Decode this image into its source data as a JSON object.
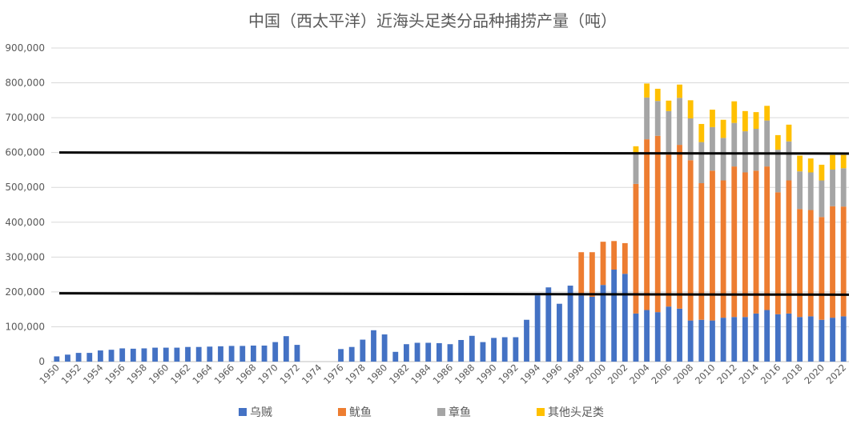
{
  "chart_data": {
    "type": "bar",
    "stacked": true,
    "title": "中国（西太平洋）近海头足类分品种捕捞产量（吨）",
    "xlabel": "",
    "ylabel": "",
    "ylim": [
      0,
      900000
    ],
    "yticks": [
      "0",
      "100,000",
      "200,000",
      "300,000",
      "400,000",
      "500,000",
      "600,000",
      "700,000",
      "800,000",
      "900,000"
    ],
    "grid": true,
    "legend_position": "bottom",
    "categories": [
      "1950",
      "1951",
      "1952",
      "1953",
      "1954",
      "1955",
      "1956",
      "1957",
      "1958",
      "1959",
      "1960",
      "1961",
      "1962",
      "1963",
      "1964",
      "1965",
      "1966",
      "1967",
      "1968",
      "1969",
      "1970",
      "1971",
      "1972",
      "1973",
      "1974",
      "1975",
      "1976",
      "1977",
      "1978",
      "1979",
      "1980",
      "1981",
      "1982",
      "1983",
      "1984",
      "1985",
      "1986",
      "1987",
      "1988",
      "1989",
      "1990",
      "1991",
      "1992",
      "1993",
      "1994",
      "1995",
      "1996",
      "1997",
      "1998",
      "1999",
      "2000",
      "2001",
      "2002",
      "2003",
      "2004",
      "2005",
      "2006",
      "2007",
      "2008",
      "2009",
      "2010",
      "2011",
      "2012",
      "2013",
      "2014",
      "2015",
      "2016",
      "2017",
      "2018",
      "2019",
      "2020",
      "2021",
      "2022"
    ],
    "series": [
      {
        "name": "乌贼",
        "color": "#4472C4",
        "values": [
          15000,
          20000,
          25000,
          25000,
          32000,
          34000,
          38000,
          37000,
          38000,
          40000,
          40000,
          40000,
          42000,
          42000,
          43000,
          44000,
          45000,
          45000,
          46000,
          46000,
          56000,
          73000,
          48000,
          0,
          0,
          0,
          36000,
          42000,
          63000,
          90000,
          78000,
          28000,
          50000,
          54000,
          54000,
          53000,
          50000,
          62000,
          74000,
          56000,
          68000,
          70000,
          70000,
          120000,
          190000,
          213000,
          166000,
          218000,
          190000,
          186000,
          220000,
          264000,
          252000,
          138000,
          148000,
          142000,
          158000,
          152000,
          118000,
          120000,
          118000,
          126000,
          128000,
          128000,
          138000,
          148000,
          136000,
          138000,
          128000,
          130000,
          120000,
          126000,
          130000
        ]
      },
      {
        "name": "鱿鱼",
        "color": "#ED7D31",
        "values": [
          0,
          0,
          0,
          0,
          0,
          0,
          0,
          0,
          0,
          0,
          0,
          0,
          0,
          0,
          0,
          0,
          0,
          0,
          0,
          0,
          0,
          0,
          0,
          0,
          0,
          0,
          0,
          0,
          0,
          0,
          0,
          0,
          0,
          0,
          0,
          0,
          0,
          0,
          0,
          0,
          0,
          0,
          0,
          0,
          0,
          0,
          0,
          0,
          124000,
          128000,
          124000,
          82000,
          88000,
          372000,
          490000,
          506000,
          436000,
          470000,
          460000,
          392000,
          430000,
          394000,
          432000,
          415000,
          410000,
          412000,
          350000,
          382000,
          310000,
          305000,
          295000,
          320000,
          315000
        ]
      },
      {
        "name": "章鱼",
        "color": "#A5A5A5",
        "values": [
          0,
          0,
          0,
          0,
          0,
          0,
          0,
          0,
          0,
          0,
          0,
          0,
          0,
          0,
          0,
          0,
          0,
          0,
          0,
          0,
          0,
          0,
          0,
          0,
          0,
          0,
          0,
          0,
          0,
          0,
          0,
          0,
          0,
          0,
          0,
          0,
          0,
          0,
          0,
          0,
          0,
          0,
          0,
          0,
          0,
          0,
          0,
          0,
          0,
          0,
          0,
          0,
          0,
          90000,
          120000,
          100000,
          125000,
          135000,
          120000,
          118000,
          125000,
          122000,
          125000,
          118000,
          120000,
          132000,
          122000,
          112000,
          108000,
          108000,
          105000,
          105000,
          110000
        ]
      },
      {
        "name": "其他头足类",
        "color": "#FFC000",
        "values": [
          0,
          0,
          0,
          0,
          0,
          0,
          0,
          0,
          0,
          0,
          0,
          0,
          0,
          0,
          0,
          0,
          0,
          0,
          0,
          0,
          0,
          0,
          0,
          0,
          0,
          0,
          0,
          0,
          0,
          0,
          0,
          0,
          0,
          0,
          0,
          0,
          0,
          0,
          0,
          0,
          0,
          0,
          0,
          0,
          0,
          0,
          0,
          0,
          0,
          0,
          0,
          0,
          0,
          18000,
          40000,
          35000,
          30000,
          38000,
          52000,
          52000,
          50000,
          52000,
          62000,
          58000,
          48000,
          42000,
          42000,
          48000,
          45000,
          40000,
          45000,
          42000,
          38000
        ]
      }
    ],
    "reference_lines": [
      {
        "y_start": 600000,
        "y_end": 597000
      },
      {
        "y_start": 196000,
        "y_end": 192000
      }
    ]
  }
}
